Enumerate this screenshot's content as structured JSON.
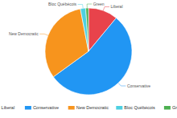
{
  "chart_data": {
    "type": "pie",
    "categories": [
      "Liberal",
      "Conservative",
      "New Democratic",
      "Bloc Québécois",
      "Green"
    ],
    "values": [
      11,
      54,
      32,
      2,
      1
    ],
    "colors": [
      "#e8434b",
      "#2196f3",
      "#f7941d",
      "#4dd0e1",
      "#4caf50"
    ],
    "legend": "bottom"
  }
}
